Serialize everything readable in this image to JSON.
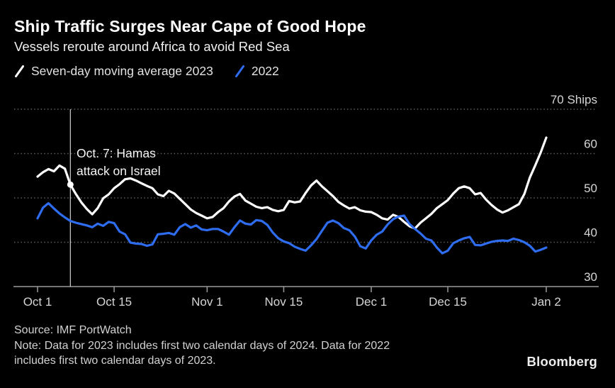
{
  "header": {
    "title": "Ship Traffic Surges Near Cape of Good Hope",
    "subtitle": "Vessels reroute around Africa to avoid Red Sea"
  },
  "legend": {
    "items": [
      {
        "label": "Seven-day moving average 2023",
        "color": "#ffffff"
      },
      {
        "label": "2022",
        "color": "#2e6cf0"
      }
    ]
  },
  "annotation": {
    "line1": "Oct. 7: Hamas",
    "line2": "attack on Israel"
  },
  "footer": {
    "source": "Source: IMF PortWatch",
    "note_line1": "Note: Data for 2023 includes first two calendar days of 2024. Data for 2022",
    "note_line2": "includes first two calendar days of 2023.",
    "logo": "Bloomberg"
  },
  "colors": {
    "background": "#000000",
    "accent_blue": "#2e6cf0",
    "grid": "#5f5f5f",
    "axis": "#9a9a9a",
    "tick_label": "#d6d6d6",
    "annotation_line": "#dcdcdc",
    "text": "#ffffff"
  },
  "chart_data": {
    "type": "line",
    "title": "Ship Traffic Surges Near Cape of Good Hope",
    "subtitle": "Vessels reroute around Africa to avoid Red Sea",
    "unit": "Ships",
    "grid": "horizontal-dotted",
    "legend_position": "top-left",
    "ylim": [
      30,
      70
    ],
    "x_unit": "days from Oct 1 (daily points, Oct 1 2023 - Jan 2 2024)",
    "y_ticks": [
      {
        "value": 30,
        "label": "30",
        "gridline": false
      },
      {
        "value": 40,
        "label": "40",
        "gridline": true
      },
      {
        "value": 50,
        "label": "50",
        "gridline": true
      },
      {
        "value": 60,
        "label": "60",
        "gridline": true
      },
      {
        "value": 70,
        "label": "70 Ships",
        "gridline": true
      }
    ],
    "x_ticks": [
      {
        "day": 0,
        "label": "Oct 1"
      },
      {
        "day": 14,
        "label": "Oct 15"
      },
      {
        "day": 31,
        "label": "Nov 1"
      },
      {
        "day": 45,
        "label": "Nov 15"
      },
      {
        "day": 61,
        "label": "Dec 1"
      },
      {
        "day": 75,
        "label": "Dec 15"
      },
      {
        "day": 93,
        "label": "Jan 2"
      }
    ],
    "annotation": {
      "label": "Oct. 7: Hamas attack on Israel",
      "day": 6,
      "value": 53.0
    },
    "series": [
      {
        "name": "Seven-day moving average 2023",
        "color": "#ffffff",
        "values": [
          54.8,
          55.8,
          56.5,
          56.0,
          57.3,
          56.6,
          53.0,
          50.9,
          49.0,
          47.5,
          46.3,
          47.7,
          49.9,
          50.8,
          52.2,
          53.1,
          54.2,
          54.4,
          53.9,
          53.3,
          52.7,
          52.2,
          50.8,
          50.4,
          51.6,
          51.0,
          49.8,
          48.6,
          47.4,
          46.6,
          46.0,
          45.4,
          45.7,
          46.8,
          47.7,
          49.2,
          50.3,
          50.9,
          49.4,
          48.7,
          48.0,
          47.7,
          47.9,
          47.3,
          47.0,
          47.3,
          49.3,
          49.0,
          49.2,
          51.1,
          52.8,
          53.9,
          52.6,
          51.5,
          50.4,
          49.1,
          48.3,
          47.6,
          47.9,
          47.2,
          46.9,
          46.8,
          46.2,
          45.4,
          45.1,
          46.2,
          45.7,
          44.6,
          43.6,
          43.1,
          44.4,
          45.4,
          46.4,
          47.7,
          48.6,
          49.5,
          51.0,
          52.2,
          52.6,
          52.2,
          50.8,
          51.1,
          49.6,
          48.4,
          47.4,
          46.7,
          47.2,
          47.9,
          48.6,
          50.9,
          54.6,
          57.4,
          60.3,
          63.6
        ]
      },
      {
        "name": "2022",
        "color": "#2e6cf0",
        "values": [
          45.4,
          47.8,
          48.8,
          47.6,
          46.5,
          45.6,
          44.8,
          44.4,
          44.1,
          43.8,
          43.4,
          44.2,
          43.7,
          44.6,
          44.3,
          42.4,
          41.8,
          39.9,
          39.7,
          39.6,
          39.2,
          39.5,
          41.8,
          41.9,
          42.1,
          41.7,
          43.4,
          44.1,
          43.3,
          43.8,
          42.9,
          42.7,
          43.0,
          43.0,
          42.4,
          41.7,
          43.4,
          44.9,
          44.2,
          44.0,
          45.0,
          44.8,
          43.9,
          42.2,
          40.9,
          40.2,
          39.8,
          39.0,
          38.5,
          38.1,
          39.3,
          40.7,
          42.6,
          44.4,
          44.9,
          44.3,
          43.2,
          42.7,
          41.3,
          39.1,
          38.6,
          40.4,
          41.7,
          42.4,
          44.0,
          45.2,
          45.8,
          46.0,
          44.1,
          43.0,
          42.0,
          40.8,
          40.4,
          38.8,
          37.5,
          38.1,
          39.8,
          40.4,
          40.9,
          41.2,
          39.4,
          39.3,
          39.7,
          40.1,
          40.3,
          40.4,
          40.3,
          40.8,
          40.5,
          40.0,
          39.2,
          37.9,
          38.3,
          38.8
        ]
      }
    ]
  }
}
